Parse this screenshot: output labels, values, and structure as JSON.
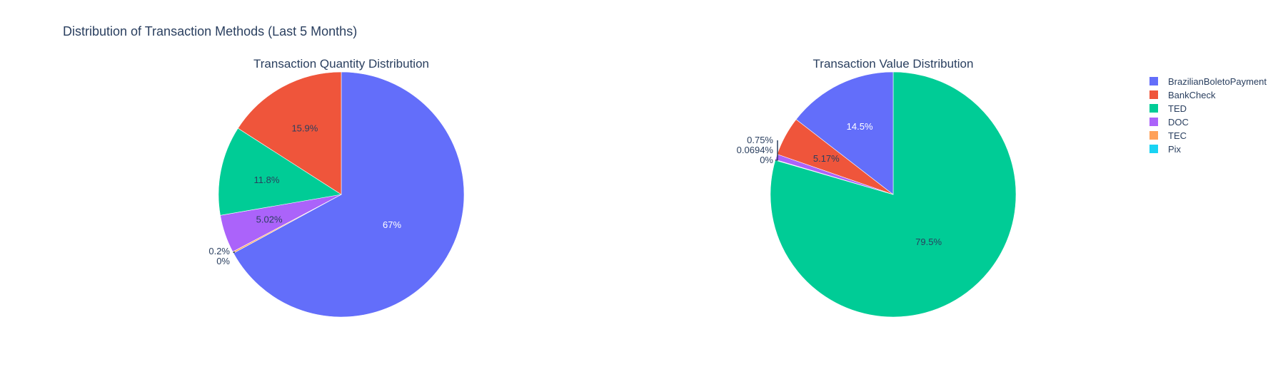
{
  "figure_title": "Distribution of Transaction Methods (Last 5 Months)",
  "colors": {
    "BrazilianBoletoPayment": "#636efa",
    "BankCheck": "#ef553b",
    "TED": "#00cc96",
    "DOC": "#ab63fa",
    "TEC": "#ffa15a",
    "Pix": "#19d3f3"
  },
  "legend": {
    "placement": "top-right",
    "items": [
      "BrazilianBoletoPayment",
      "BankCheck",
      "TED",
      "DOC",
      "TEC",
      "Pix"
    ]
  },
  "chart_data": [
    {
      "type": "pie",
      "title": "Transaction Quantity Distribution",
      "direction": "clockwise",
      "rotation_deg": 0,
      "categories": [
        "BrazilianBoletoPayment",
        "TEC",
        "Pix",
        "DOC",
        "TED",
        "BankCheck"
      ],
      "values": [
        67,
        0.2,
        0,
        5.02,
        11.8,
        15.9
      ],
      "labels": [
        "67%",
        "0.2%",
        "0%",
        "5.02%",
        "11.8%",
        "15.9%"
      ]
    },
    {
      "type": "pie",
      "title": "Transaction Value Distribution",
      "direction": "clockwise",
      "rotation_deg": 0,
      "categories": [
        "TED",
        "Pix",
        "TEC",
        "DOC",
        "BankCheck",
        "BrazilianBoletoPayment"
      ],
      "values": [
        79.5,
        0,
        0.0694,
        0.75,
        5.17,
        14.5
      ],
      "labels": [
        "79.5%",
        "0%",
        "0.0694%",
        "0.75%",
        "5.17%",
        "14.5%"
      ]
    }
  ]
}
